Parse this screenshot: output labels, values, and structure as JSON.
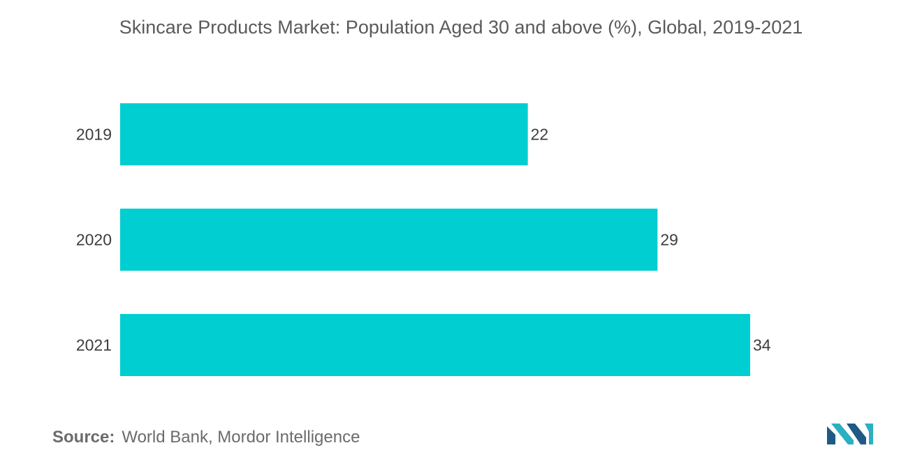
{
  "chart_data": {
    "type": "bar",
    "orientation": "horizontal",
    "title": "Skincare Products Market: Population Aged 30 and above (%), Global, 2019-2021",
    "categories": [
      "2019",
      "2020",
      "2021"
    ],
    "values": [
      22,
      29,
      34
    ],
    "xlim": [
      0,
      34
    ],
    "grid": false,
    "legend": "none",
    "colors": {
      "bar": "#00CED1"
    }
  },
  "source": {
    "label": "Source:",
    "text": "World Bank, Mordor Intelligence"
  },
  "logo": {
    "colors": [
      "#1f5a86",
      "#2bb0c2"
    ]
  }
}
